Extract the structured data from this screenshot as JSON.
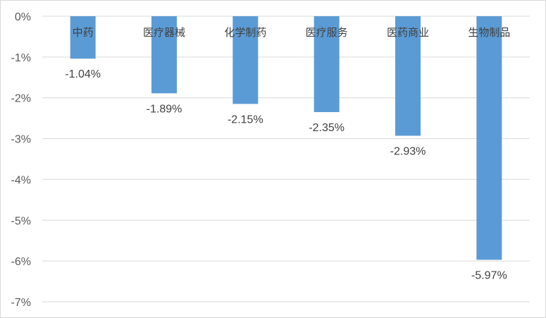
{
  "chart_data": {
    "type": "bar",
    "categories": [
      "中药",
      "医疗器械",
      "化学制药",
      "医疗服务",
      "医药商业",
      "生物制品"
    ],
    "values": [
      -1.04,
      -1.89,
      -2.15,
      -2.35,
      -2.93,
      -5.97
    ],
    "data_labels": [
      "-1.04%",
      "-1.89%",
      "-2.15%",
      "-2.35%",
      "-2.93%",
      "-5.97%"
    ],
    "y_ticks": [
      0,
      -1,
      -2,
      -3,
      -4,
      -5,
      -6,
      -7
    ],
    "y_tick_labels": [
      "0%",
      "-1%",
      "-2%",
      "-3%",
      "-4%",
      "-5%",
      "-6%",
      "-7%"
    ],
    "ylim": [
      -7,
      0
    ],
    "grid": true,
    "legend": "none",
    "title": "",
    "xlabel": "",
    "ylabel": "",
    "bar_color": "#5b9bd5"
  }
}
